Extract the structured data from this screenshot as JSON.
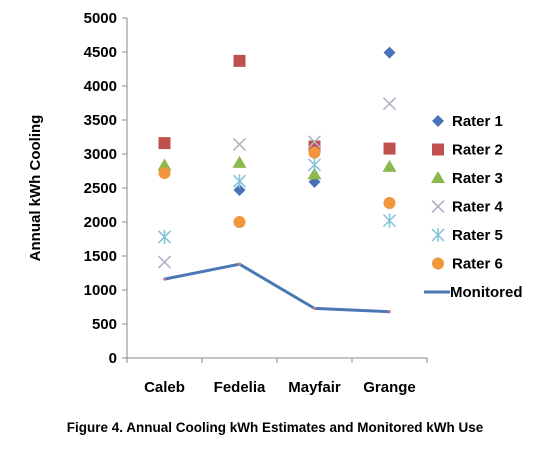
{
  "caption": "Figure 4. Annual Cooling kWh Estimates and Monitored kWh Use",
  "chart_data": {
    "type": "scatter",
    "title": "",
    "xlabel": "",
    "ylabel": "Annual kWh Cooling",
    "ylim": [
      0,
      5000
    ],
    "yticks": [
      "0",
      "500",
      "1000",
      "1500",
      "2000",
      "2500",
      "3000",
      "3500",
      "4000",
      "4500",
      "5000"
    ],
    "categories": [
      "Caleb",
      "Fedelia",
      "Mayfair",
      "Grange"
    ],
    "grid": false,
    "legend_position": "right",
    "series": [
      {
        "name": "Rater 1",
        "marker": "diamond",
        "color": "#4a72b8",
        "values": [
          null,
          2470,
          2590,
          4490
        ]
      },
      {
        "name": "Rater 2",
        "marker": "square",
        "color": "#c0504d",
        "values": [
          3160,
          4370,
          3110,
          3080
        ]
      },
      {
        "name": "Rater 3",
        "marker": "triangle",
        "color": "#8db84c",
        "values": [
          2830,
          2870,
          2700,
          2810
        ]
      },
      {
        "name": "Rater 4",
        "marker": "x",
        "color": "#b0b3c8",
        "values": [
          1410,
          3140,
          3180,
          3740
        ]
      },
      {
        "name": "Rater 5",
        "marker": "asterisk",
        "color": "#7fc3d6",
        "values": [
          1780,
          2600,
          2840,
          2020
        ]
      },
      {
        "name": "Rater 6",
        "marker": "circle",
        "color": "#f0963c",
        "values": [
          2720,
          2000,
          3020,
          2280
        ]
      },
      {
        "name": "Monitored",
        "marker": "line",
        "color": "#4a78b5",
        "values": [
          1160,
          1380,
          730,
          680
        ]
      }
    ]
  }
}
